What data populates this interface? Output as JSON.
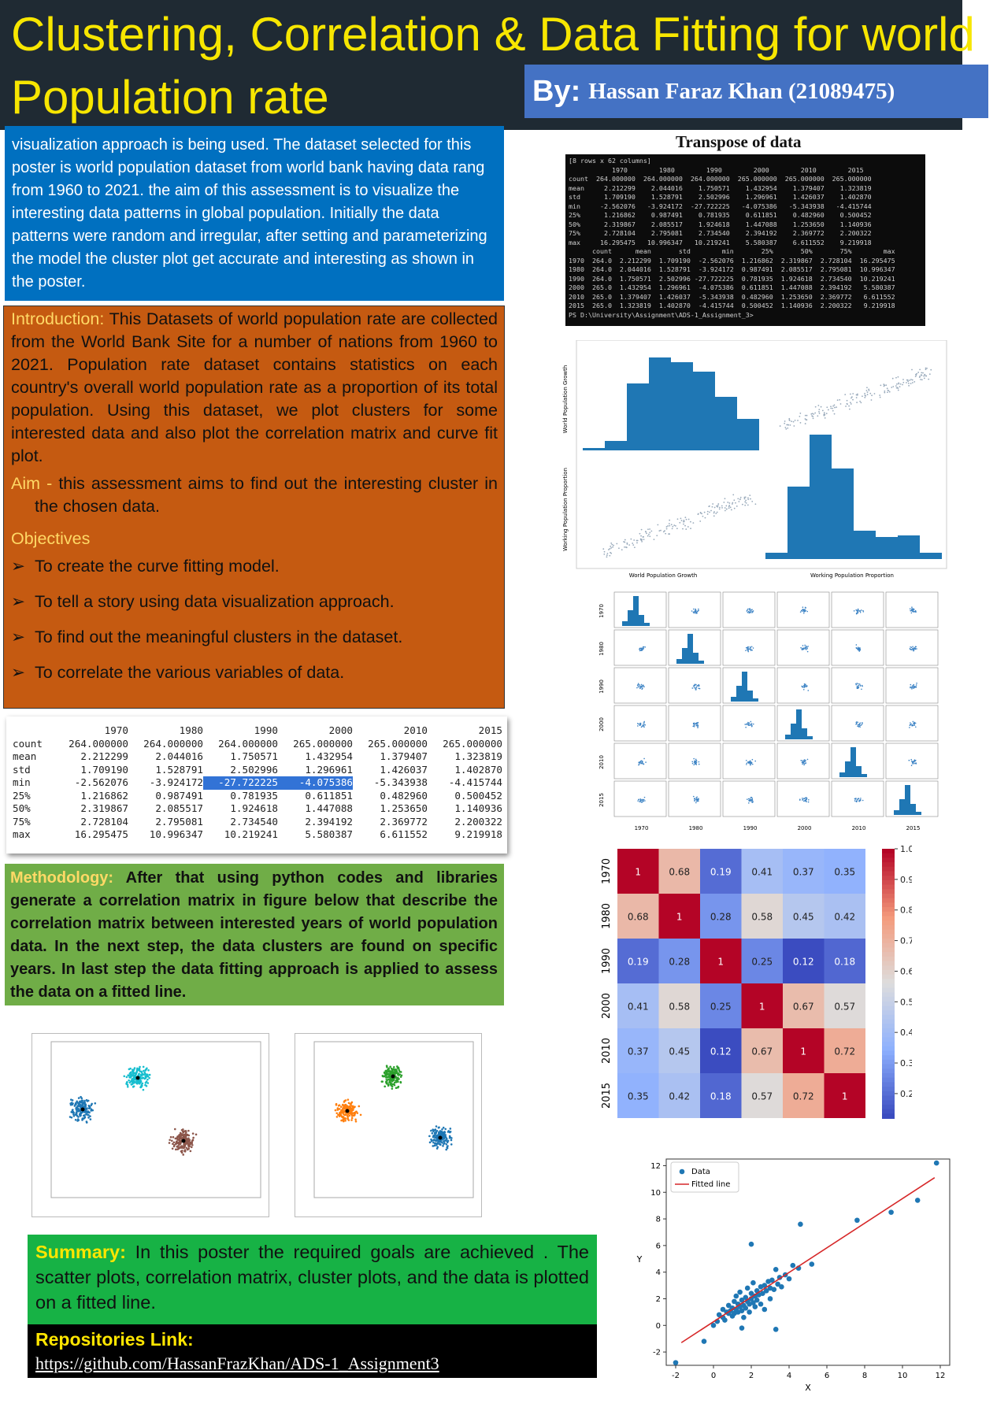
{
  "header": {
    "title_line1": "Clustering, Correlation & Data Fitting for world",
    "title_line2": "Population rate",
    "by_label": "By:",
    "author": "Hassan Faraz Khan (21089475)"
  },
  "abstract": {
    "text": "visualization approach is being used. The dataset selected for this poster is world population dataset from world bank having data rang from 1960 to 2021. the aim of this assessment is to visualize the interesting data patterns in global population. Initially the data patterns were random and irregular, after setting and parameterizing the model the cluster plot get accurate and interesting as shown in the poster."
  },
  "introduction": {
    "label": "Introduction:",
    "text": " This Datasets of world population rate are collected from the World Bank Site for a number of nations from 1960 to 2021. Population rate dataset contains statistics on each country's overall world population rate as a proportion of its total population. Using this dataset, we plot clusters for some interested data and also plot the correlation matrix and curve fit plot.",
    "aim_label": "Aim - ",
    "aim_text": "this assessment aims to find out the interesting cluster in the chosen data.",
    "objectives_label": "Objectives",
    "objectives": [
      "To create the curve fitting model.",
      "To tell a story using data visualization approach.",
      "To find out the meaningful clusters in the dataset.",
      "To correlate the various variables of data."
    ]
  },
  "stats_table": {
    "columns": [
      "1970",
      "1980",
      "1990",
      "2000",
      "2010",
      "2015"
    ],
    "rows": [
      {
        "label": "count",
        "values": [
          "264.000000",
          "264.000000",
          "264.000000",
          "265.000000",
          "265.000000",
          "265.000000"
        ]
      },
      {
        "label": "mean",
        "values": [
          "2.212299",
          "2.044016",
          "1.750571",
          "1.432954",
          "1.379407",
          "1.323819"
        ]
      },
      {
        "label": "std",
        "values": [
          "1.709190",
          "1.528791",
          "2.502996",
          "1.296961",
          "1.426037",
          "1.402870"
        ]
      },
      {
        "label": "min",
        "values": [
          "-2.562076",
          "-3.924172",
          "-27.722225",
          "-4.075386",
          "-5.343938",
          "-4.415744"
        ]
      },
      {
        "label": "25%",
        "values": [
          "1.216862",
          "0.987491",
          "0.781935",
          "0.611851",
          "0.482960",
          "0.500452"
        ]
      },
      {
        "label": "50%",
        "values": [
          "2.319867",
          "2.085517",
          "1.924618",
          "1.447088",
          "1.253650",
          "1.140936"
        ]
      },
      {
        "label": "75%",
        "values": [
          "2.728104",
          "2.795081",
          "2.734540",
          "2.394192",
          "2.369772",
          "2.200322"
        ]
      },
      {
        "label": "max",
        "values": [
          "16.295475",
          "10.996347",
          "10.219241",
          "5.580387",
          "6.611552",
          "9.219918"
        ]
      }
    ]
  },
  "methodology": {
    "label": "Methodology:",
    "text": " After that using python codes and libraries generate a correlation matrix in figure below that describe the correlation matrix between interested years of world population data.  In the next step, the data clusters are found on specific years. In last step the data fitting approach is applied to assess the data on a fitted line."
  },
  "summary": {
    "label": "Summary:",
    "text": " In this poster the required goals are achieved . The scatter plots, correlation matrix, cluster plots, and the data is plotted on a fitted line."
  },
  "repository": {
    "label": "Repositories Link:",
    "link": "https://github.com/HassanFrazKhan/ADS-1_Assignment3"
  },
  "transpose": {
    "title": "Transpose of data",
    "terminal_text": "[8 rows x 62 columns]\n           1970        1980        1990        2000        2010        2015\ncount  264.000000  264.000000  264.000000  265.000000  265.000000  265.000000\nmean     2.212299    2.044016    1.750571    1.432954    1.379407    1.323819\nstd      1.709190    1.528791    2.502996    1.296961    1.426037    1.402870\nmin     -2.562076   -3.924172  -27.722225   -4.075386   -5.343938   -4.415744\n25%      1.216862    0.987491    0.781935    0.611851    0.482960    0.500452\n50%      2.319867    2.085517    1.924618    1.447088    1.253650    1.140936\n75%      2.728104    2.795081    2.734540    2.394192    2.369772    2.200322\nmax     16.295475   10.996347   10.219241    5.580387    6.611552    9.219918\n      count      mean       std        min       25%       50%       75%        max\n1970  264.0  2.212299  1.709190  -2.562076  1.216862  2.319867  2.728104  16.295475\n1980  264.0  2.044016  1.528791  -3.924172  0.987491  2.085517  2.795081  10.996347\n1990  264.0  1.750571  2.502996 -27.722225  0.781935  1.924618  2.734540  10.219241\n2000  265.0  1.432954  1.296961  -4.075386  0.611851  1.447088  2.394192   5.580387\n2010  265.0  1.379407  1.426037  -5.343938  0.482960  1.253650  2.369772   6.611552\n2015  265.0  1.323819  1.402870  -4.415744  0.500452  1.140936  2.200322   9.219918\nPS D:\\University\\Assignment\\ADS-1_Assignment_3>"
  },
  "pairplot2": {
    "xlabel_left": "World Population Growth",
    "xlabel_right": "Working Population Proportion",
    "ylabel_top": "World Population Growth",
    "ylabel_bottom": "Working Population Proportion"
  },
  "pairplot6": {
    "years": [
      "1970",
      "1980",
      "1990",
      "2000",
      "2010",
      "2015"
    ]
  },
  "chart_data": [
    {
      "type": "heatmap",
      "labels": [
        "1970",
        "1980",
        "1990",
        "2000",
        "2010",
        "2015"
      ],
      "values": [
        [
          1,
          0.68,
          0.19,
          0.41,
          0.37,
          0.35
        ],
        [
          0.68,
          1,
          0.28,
          0.58,
          0.45,
          0.42
        ],
        [
          0.19,
          0.28,
          1,
          0.25,
          0.12,
          0.18
        ],
        [
          0.41,
          0.58,
          0.25,
          1,
          0.67,
          0.57
        ],
        [
          0.37,
          0.45,
          0.12,
          0.67,
          1,
          0.72
        ],
        [
          0.35,
          0.42,
          0.18,
          0.57,
          0.72,
          1
        ]
      ],
      "colorbar_ticks": [
        "1.0",
        "0.9",
        "0.8",
        "0.7",
        "0.6",
        "0.5",
        "0.4",
        "0.3",
        "0.2"
      ],
      "colorscale": "coolwarm"
    },
    {
      "type": "scatter",
      "title": "",
      "xlabel": "X",
      "ylabel": "Y",
      "xlim": [
        -2.5,
        12.5
      ],
      "ylim": [
        -3,
        12.5
      ],
      "xticks": [
        -2,
        0,
        2,
        4,
        6,
        8,
        10,
        12
      ],
      "yticks": [
        -2,
        0,
        2,
        4,
        6,
        8,
        10,
        12
      ],
      "legend": [
        "Data",
        "Fitted line"
      ],
      "legend_position": "top-left",
      "fitted_line": {
        "x": [
          -1.7,
          11.7
        ],
        "y": [
          -1.3,
          11.1
        ],
        "color": "#d62728"
      },
      "series": [
        {
          "name": "Data",
          "color": "#1f77b4",
          "points": [
            [
              -2.0,
              -2.8
            ],
            [
              -0.5,
              -1.2
            ],
            [
              0.0,
              0.0
            ],
            [
              0.2,
              0.3
            ],
            [
              0.3,
              0.8
            ],
            [
              0.5,
              0.6
            ],
            [
              0.5,
              1.2
            ],
            [
              0.6,
              0.4
            ],
            [
              0.7,
              1.0
            ],
            [
              0.8,
              1.5
            ],
            [
              0.8,
              0.9
            ],
            [
              0.9,
              1.1
            ],
            [
              1.0,
              0.7
            ],
            [
              1.0,
              1.3
            ],
            [
              1.1,
              1.8
            ],
            [
              1.1,
              0.9
            ],
            [
              1.2,
              1.2
            ],
            [
              1.2,
              2.2
            ],
            [
              1.3,
              1.0
            ],
            [
              1.3,
              1.6
            ],
            [
              1.4,
              1.4
            ],
            [
              1.4,
              2.5
            ],
            [
              1.5,
              1.1
            ],
            [
              1.5,
              1.9
            ],
            [
              1.6,
              1.5
            ],
            [
              1.6,
              0.6
            ],
            [
              1.7,
              2.1
            ],
            [
              1.7,
              1.3
            ],
            [
              1.8,
              1.8
            ],
            [
              1.8,
              2.8
            ],
            [
              1.9,
              1.6
            ],
            [
              1.9,
              1.0
            ],
            [
              2.0,
              2.0
            ],
            [
              2.0,
              2.4
            ],
            [
              2.1,
              1.7
            ],
            [
              2.1,
              3.2
            ],
            [
              2.2,
              2.2
            ],
            [
              2.2,
              1.4
            ],
            [
              2.3,
              2.6
            ],
            [
              2.3,
              1.9
            ],
            [
              2.4,
              2.3
            ],
            [
              2.5,
              2.9
            ],
            [
              2.5,
              1.6
            ],
            [
              2.6,
              2.4
            ],
            [
              2.7,
              3.0
            ],
            [
              2.7,
              1.2
            ],
            [
              2.8,
              2.6
            ],
            [
              2.9,
              3.3
            ],
            [
              3.0,
              2.8
            ],
            [
              3.0,
              2.0
            ],
            [
              3.1,
              3.4
            ],
            [
              3.2,
              2.7
            ],
            [
              3.3,
              4.2
            ],
            [
              3.4,
              3.1
            ],
            [
              3.5,
              3.6
            ],
            [
              3.6,
              2.9
            ],
            [
              3.8,
              3.8
            ],
            [
              4.0,
              3.5
            ],
            [
              4.2,
              4.5
            ],
            [
              4.5,
              4.3
            ],
            [
              2.0,
              6.1
            ],
            [
              4.6,
              7.6
            ],
            [
              5.2,
              4.6
            ],
            [
              3.3,
              -0.3
            ],
            [
              1.5,
              -0.2
            ],
            [
              7.6,
              7.9
            ],
            [
              9.4,
              8.5
            ],
            [
              10.8,
              9.4
            ],
            [
              11.8,
              12.2
            ]
          ]
        }
      ]
    }
  ]
}
